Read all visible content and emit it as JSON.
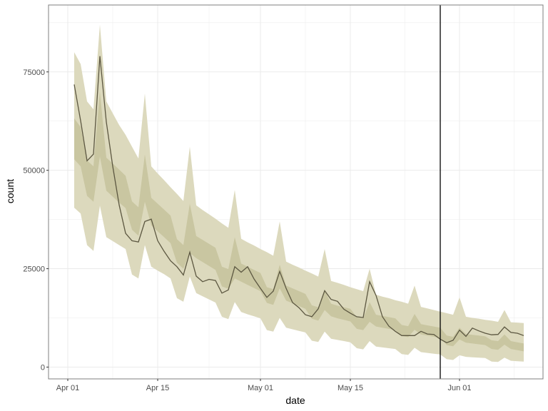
{
  "chart_data": {
    "type": "line",
    "title": "",
    "xlabel": "date",
    "ylabel": "count",
    "x_ticks": [
      "Apr 01",
      "Apr 15",
      "May 01",
      "May 15",
      "Jun 01"
    ],
    "y_ticks": [
      0,
      25000,
      50000,
      75000
    ],
    "y_tick_labels": [
      "0",
      "25000",
      "50000",
      "75000"
    ],
    "xlim": [
      "Mar 29",
      "Jun 14"
    ],
    "ylim": [
      -3000,
      92000
    ],
    "grid": true,
    "vline": "May 29",
    "colors": {
      "line": "#5c5741",
      "outer_band": "#dcd9bd",
      "inner_band": "#c9c6a1",
      "vline": "#000000",
      "panel_border": "#7f7f7f",
      "grid": "#ebebeb"
    },
    "x": [
      "Apr 02",
      "Apr 03",
      "Apr 04",
      "Apr 05",
      "Apr 06",
      "Apr 07",
      "Apr 08",
      "Apr 09",
      "Apr 10",
      "Apr 11",
      "Apr 12",
      "Apr 13",
      "Apr 14",
      "Apr 15",
      "Apr 16",
      "Apr 17",
      "Apr 18",
      "Apr 19",
      "Apr 20",
      "Apr 21",
      "Apr 22",
      "Apr 23",
      "Apr 24",
      "Apr 25",
      "Apr 26",
      "Apr 27",
      "Apr 28",
      "Apr 29",
      "Apr 30",
      "May 01",
      "May 02",
      "May 03",
      "May 04",
      "May 05",
      "May 06",
      "May 07",
      "May 08",
      "May 09",
      "May 10",
      "May 11",
      "May 12",
      "May 13",
      "May 14",
      "May 15",
      "May 16",
      "May 17",
      "May 18",
      "May 19",
      "May 20",
      "May 21",
      "May 22",
      "May 23",
      "May 24",
      "May 25",
      "May 26",
      "May 27",
      "May 28",
      "May 29",
      "May 30",
      "May 31",
      "Jun 01",
      "Jun 02",
      "Jun 03",
      "Jun 04",
      "Jun 05",
      "Jun 06",
      "Jun 07",
      "Jun 08",
      "Jun 09",
      "Jun 10",
      "Jun 11"
    ],
    "series": [
      {
        "role": "observed",
        "values": [
          71800,
          62600,
          52400,
          54100,
          79000,
          62300,
          51000,
          41200,
          34000,
          32100,
          31800,
          37000,
          37600,
          32100,
          29400,
          27000,
          25500,
          23400,
          29200,
          23100,
          21700,
          22300,
          22000,
          18800,
          19600,
          25500,
          24100,
          25500,
          22400,
          20000,
          17700,
          19300,
          24300,
          20000,
          16400,
          15100,
          13300,
          12800,
          14800,
          19400,
          17200,
          16700,
          14700,
          13700,
          12800,
          12600,
          21700,
          18200,
          12800,
          10400,
          9100,
          8000,
          8000,
          8000,
          9100,
          8400,
          8300,
          7100,
          6200,
          6800,
          9400,
          7800,
          9900,
          9200,
          8600,
          8200,
          8300,
          10200,
          8800,
          8600,
          8000
        ]
      },
      {
        "role": "outer_upper",
        "values": [
          80000,
          77000,
          67500,
          65500,
          87000,
          67500,
          64500,
          61500,
          59000,
          56000,
          53000,
          69500,
          51000,
          49200,
          47500,
          45700,
          44000,
          42200,
          56000,
          41100,
          39900,
          38800,
          37700,
          36500,
          35400,
          45000,
          32600,
          31700,
          30900,
          30000,
          29200,
          28300,
          37000,
          26800,
          26000,
          25300,
          24500,
          23800,
          23000,
          30000,
          21900,
          21400,
          20900,
          20300,
          19800,
          19300,
          25000,
          18400,
          17900,
          17500,
          17000,
          16600,
          16100,
          20700,
          15300,
          14900,
          14500,
          14100,
          13700,
          13300,
          17700,
          12800,
          12500,
          12300,
          12000,
          11800,
          11500,
          14500,
          11400,
          11300,
          11200
        ]
      },
      {
        "role": "outer_lower",
        "values": [
          40500,
          39000,
          31000,
          29500,
          41000,
          33000,
          32000,
          31000,
          30000,
          23500,
          22500,
          31000,
          25500,
          24500,
          23600,
          22500,
          17500,
          16600,
          23000,
          18800,
          18000,
          17200,
          16400,
          12800,
          12200,
          16500,
          14000,
          13400,
          12900,
          12400,
          9400,
          9000,
          12500,
          10000,
          9600,
          9200,
          8800,
          6700,
          6400,
          9000,
          7200,
          6900,
          6600,
          6300,
          4800,
          4500,
          6600,
          5200,
          5000,
          4800,
          4600,
          3300,
          3100,
          4900,
          3800,
          3600,
          3400,
          3200,
          2000,
          1800,
          3000,
          2600,
          2500,
          2400,
          2300,
          1400,
          1300,
          2400,
          1600,
          1500,
          1400
        ]
      },
      {
        "role": "inner_upper",
        "values": [
          63200,
          61000,
          52500,
          51000,
          70000,
          53200,
          51700,
          50200,
          48600,
          42100,
          40600,
          54000,
          43000,
          41500,
          40000,
          38500,
          32500,
          31000,
          41500,
          33300,
          32300,
          31300,
          30300,
          25500,
          24900,
          33000,
          26300,
          25500,
          24700,
          23900,
          20300,
          19800,
          26000,
          20700,
          20000,
          19300,
          18600,
          15700,
          15200,
          19500,
          16100,
          15600,
          15200,
          14800,
          12700,
          12400,
          16500,
          13300,
          13000,
          12700,
          12400,
          10700,
          10400,
          13500,
          10900,
          10600,
          10300,
          10000,
          8000,
          7700,
          10000,
          8400,
          8200,
          8000,
          7800,
          6800,
          6600,
          8300,
          6600,
          6300,
          6000
        ]
      },
      {
        "role": "inner_lower",
        "values": [
          52800,
          51000,
          43500,
          42000,
          53500,
          44800,
          43300,
          41800,
          40400,
          34900,
          33400,
          42000,
          36000,
          34500,
          33000,
          31500,
          26500,
          25000,
          29000,
          27700,
          26700,
          25700,
          24700,
          20500,
          19900,
          22500,
          21700,
          20900,
          20100,
          19300,
          16300,
          15800,
          20000,
          16900,
          16200,
          15500,
          14800,
          12300,
          11800,
          14500,
          12900,
          12400,
          12000,
          11600,
          9700,
          9400,
          11500,
          10300,
          10000,
          9700,
          9400,
          7900,
          7600,
          9500,
          8300,
          8000,
          7700,
          7400,
          5600,
          5300,
          7000,
          6200,
          6000,
          5800,
          5600,
          4600,
          4400,
          5700,
          4600,
          4300,
          4000
        ]
      }
    ]
  }
}
